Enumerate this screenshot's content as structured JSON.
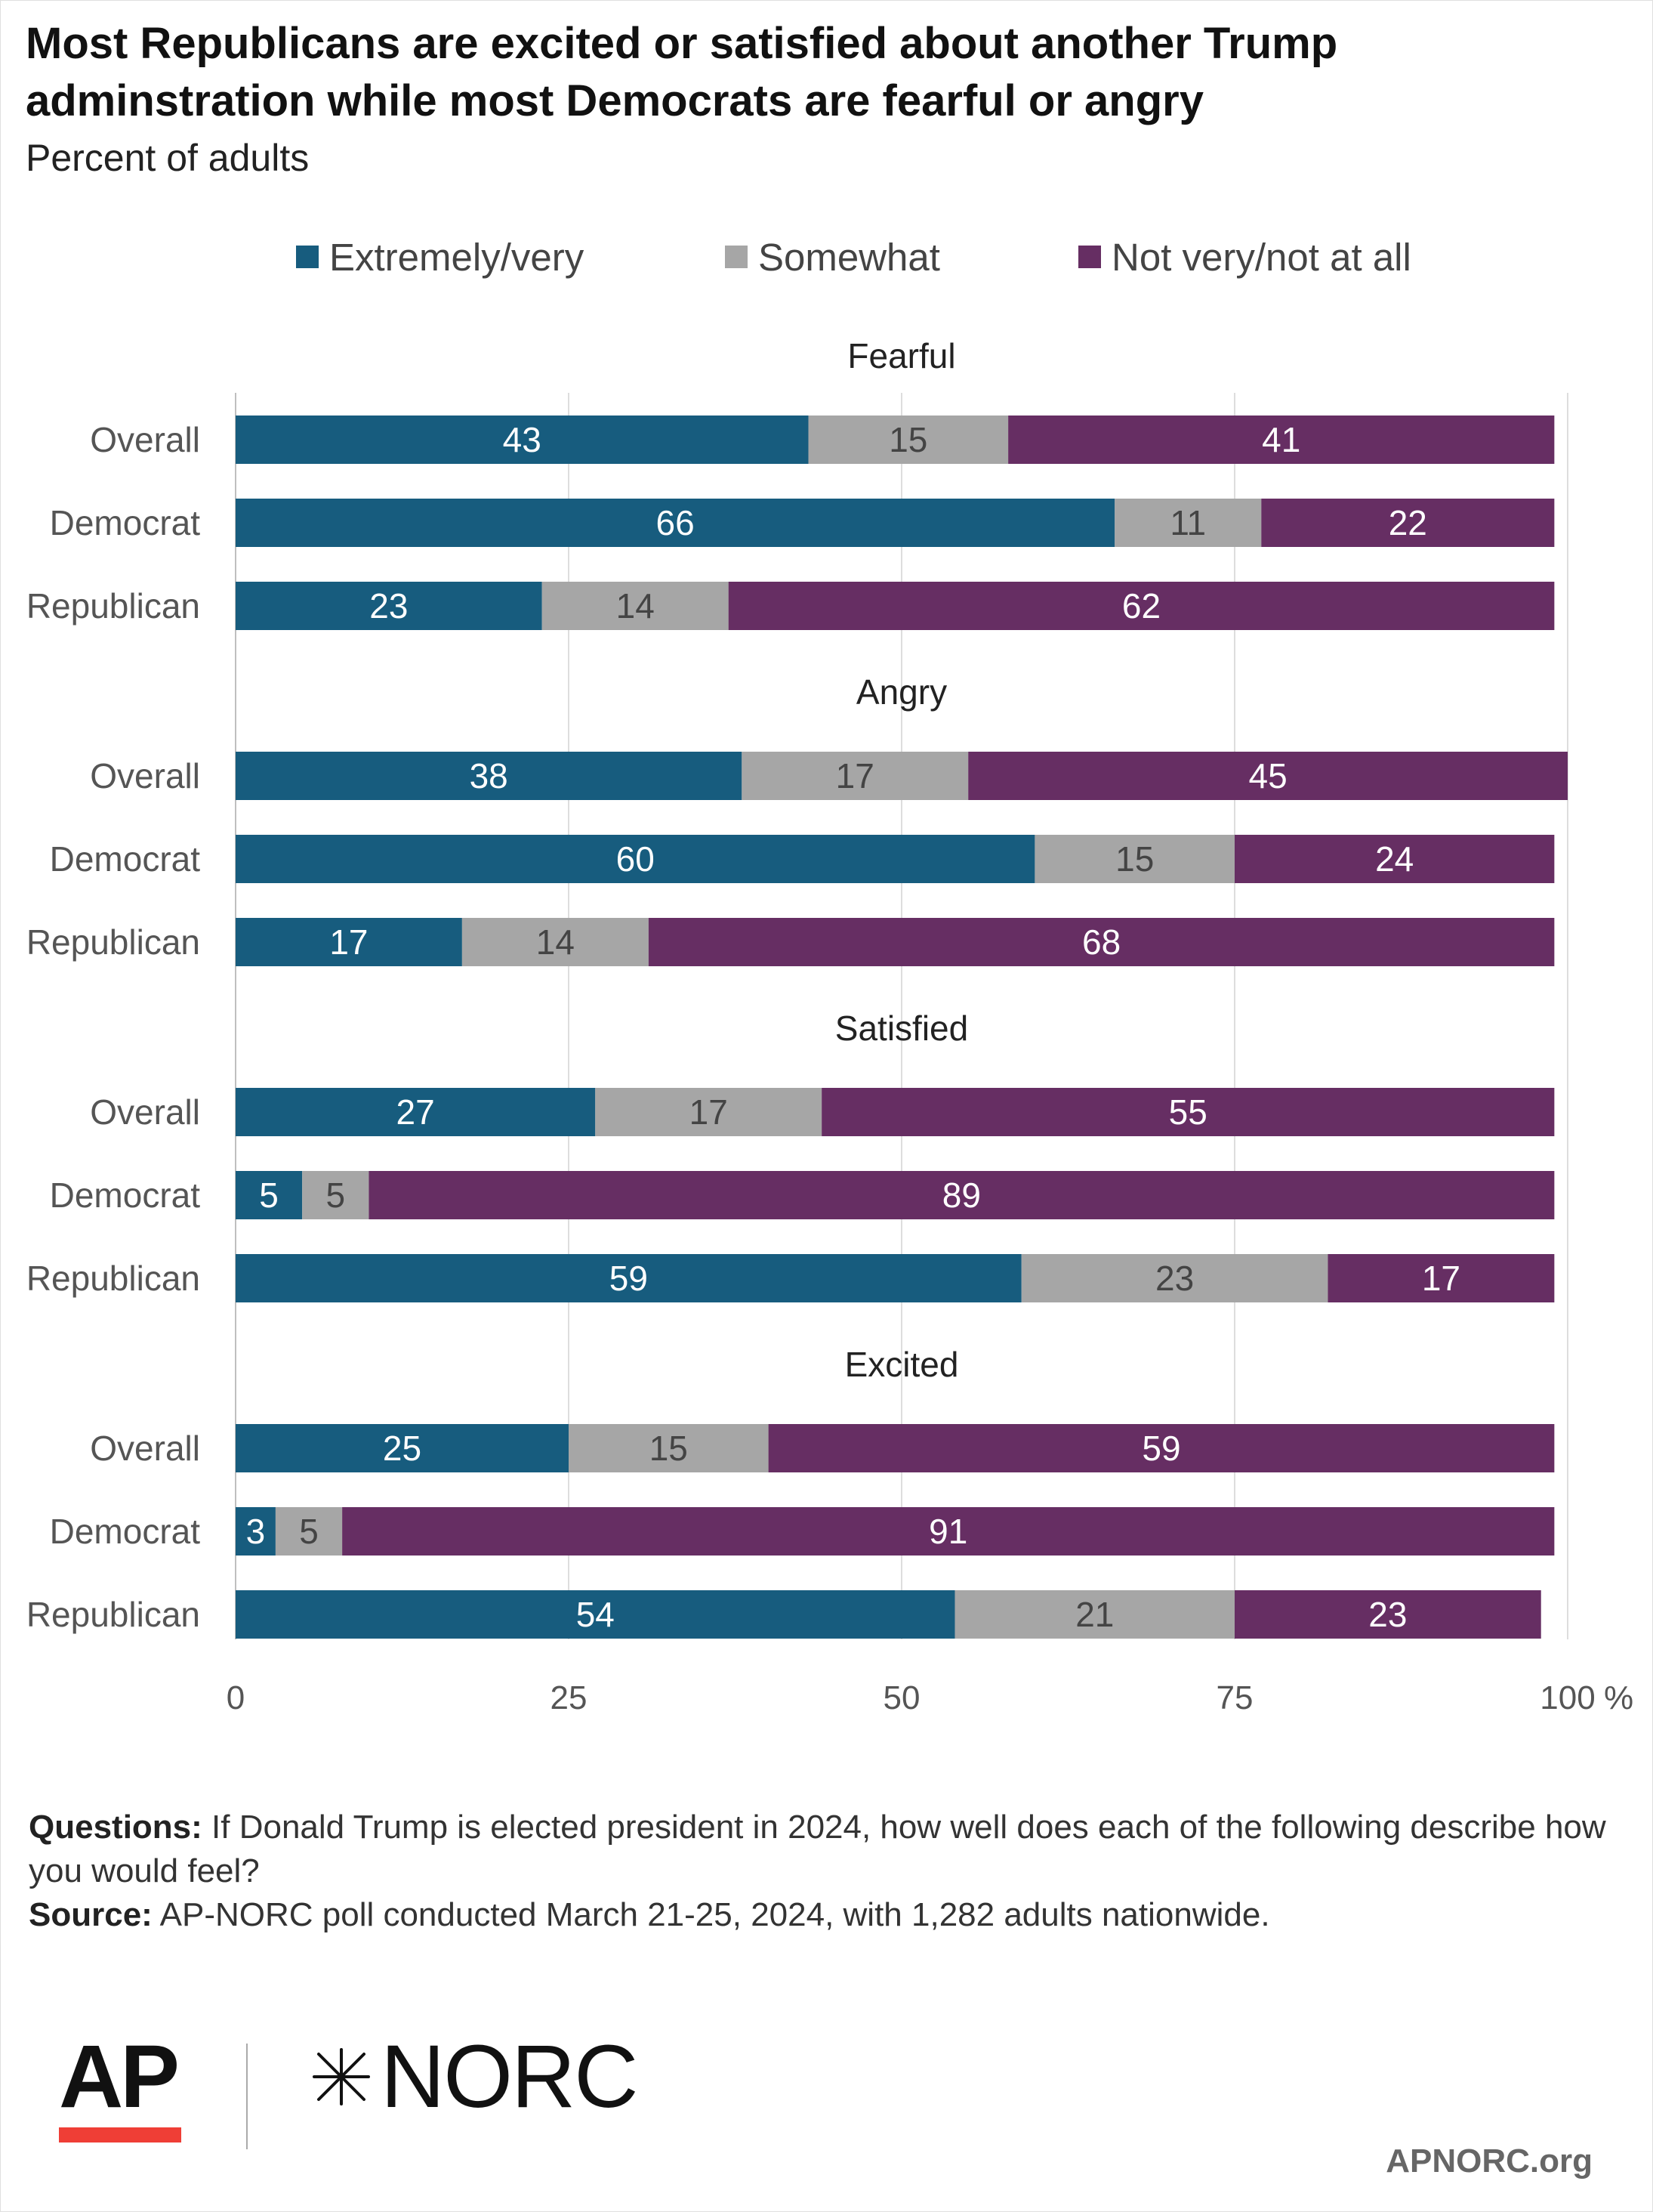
{
  "title": "Most Republicans are excited or satisfied about another Trump adminstration while most Democrats are fearful or angry",
  "subtitle": "Percent of adults",
  "legend": [
    {
      "label": "Extremely/very",
      "color": "#175c7e"
    },
    {
      "label": "Somewhat",
      "color": "#a6a6a6"
    },
    {
      "label": "Not very/not at all",
      "color": "#662e63"
    }
  ],
  "chart_data": {
    "type": "bar",
    "orientation": "horizontal",
    "stacked": true,
    "x_unit": "%",
    "xlim": [
      0,
      100
    ],
    "x_ticks": [
      0,
      25,
      50,
      75,
      100
    ],
    "grid": true,
    "legend_position": "top",
    "series_names": [
      "Extremely/very",
      "Somewhat",
      "Not very/not at all"
    ],
    "series_colors": [
      "#175c7e",
      "#a6a6a6",
      "#662e63"
    ],
    "panels": [
      {
        "title": "Fearful",
        "rows": [
          {
            "label": "Overall",
            "values": [
              43,
              15,
              41
            ]
          },
          {
            "label": "Democrat",
            "values": [
              66,
              11,
              22
            ]
          },
          {
            "label": "Republican",
            "values": [
              23,
              14,
              62
            ]
          }
        ]
      },
      {
        "title": "Angry",
        "rows": [
          {
            "label": "Overall",
            "values": [
              38,
              17,
              45
            ]
          },
          {
            "label": "Democrat",
            "values": [
              60,
              15,
              24
            ]
          },
          {
            "label": "Republican",
            "values": [
              17,
              14,
              68
            ]
          }
        ]
      },
      {
        "title": "Satisfied",
        "rows": [
          {
            "label": "Overall",
            "values": [
              27,
              17,
              55
            ]
          },
          {
            "label": "Democrat",
            "values": [
              5,
              5,
              89
            ]
          },
          {
            "label": "Republican",
            "values": [
              59,
              23,
              17
            ]
          }
        ]
      },
      {
        "title": "Excited",
        "rows": [
          {
            "label": "Overall",
            "values": [
              25,
              15,
              59
            ]
          },
          {
            "label": "Democrat",
            "values": [
              3,
              5,
              91
            ]
          },
          {
            "label": "Republican",
            "values": [
              54,
              21,
              23
            ]
          }
        ]
      }
    ]
  },
  "notes": {
    "questions_label": "Questions:",
    "questions_text": "If Donald Trump is elected president in 2024, how well does each of the following describe how you would feel?",
    "source_label": "Source:",
    "source_text": "AP-NORC poll conducted March 21-25, 2024, with 1,282 adults nationwide."
  },
  "logos": {
    "ap": "AP",
    "norc": "NORC"
  },
  "footer_url": "APNORC.org"
}
